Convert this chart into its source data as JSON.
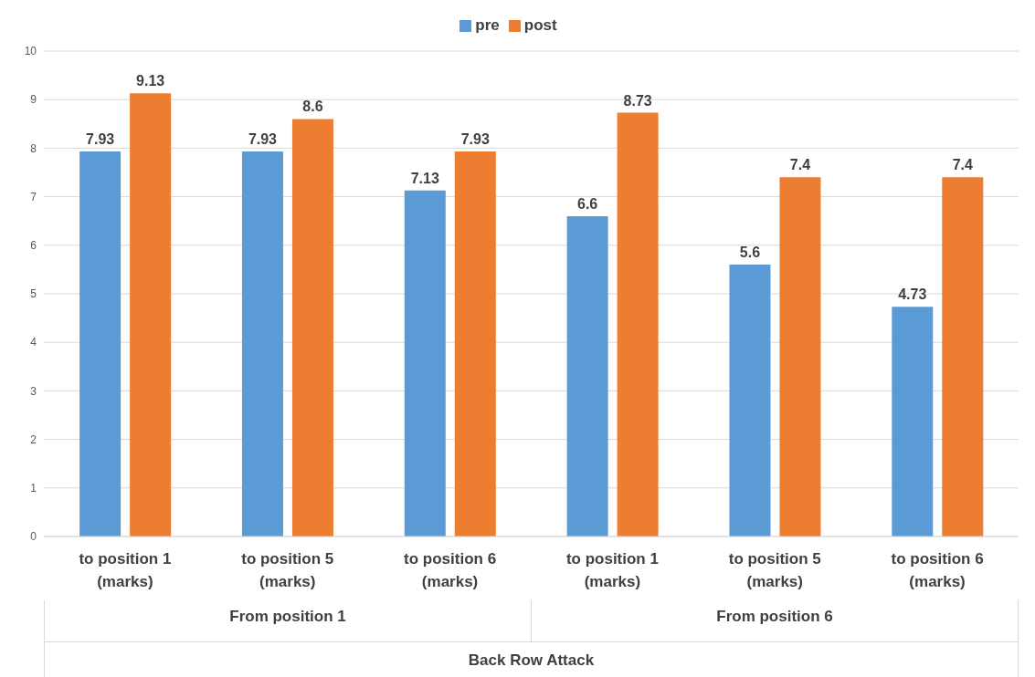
{
  "chart_data": {
    "type": "bar",
    "categories": [
      "to position 1 (marks)",
      "to position 5 (marks)",
      "to position 6 (marks)",
      "to position 1 (marks)",
      "to position 5 (marks)",
      "to position 6 (marks)"
    ],
    "annotations": [
      "From position 1",
      "From position 6",
      "Back Row Attack"
    ],
    "series": [
      {
        "name": "pre",
        "color": "#5b9bd5",
        "values": [
          7.93,
          7.93,
          7.13,
          6.6,
          5.6,
          4.73
        ]
      },
      {
        "name": "post",
        "color": "#ed7d31",
        "values": [
          9.13,
          8.6,
          7.93,
          8.73,
          7.4,
          7.4
        ]
      }
    ],
    "ylim": [
      0,
      10
    ],
    "yticks": [
      0,
      1,
      2,
      3,
      4,
      5,
      6,
      7,
      8,
      9,
      10
    ],
    "grid": "y",
    "legend": "top",
    "data_labels": true
  }
}
